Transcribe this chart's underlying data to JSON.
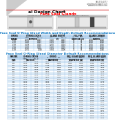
{
  "title": "al Design Chart",
  "subtitle": "Face Seal Glands",
  "subtitle_color": "#FF0000",
  "top_right_text": [
    "888-770-4777",
    "sales@marcorubber.com",
    "www.marcorubber.com"
  ],
  "background_color": "#FFFFFF",
  "table1_title": "Face Seal O-Ring Gland Width and Depth Default Recommendations",
  "table1_title_color": "#0070C0",
  "table2_title": "Face Seal O-Ring Gland Diameter Default Recommendations",
  "table2_title_color": "#0070C0",
  "header_bg_color": "#BDD7EE",
  "row_alt_color": "#DDEBF7",
  "row_normal_color": "#FFFFFF",
  "border_color": "#9DC3E6",
  "table1_rows": [
    [
      "-1XX",
      "0.070",
      "0.003",
      "0.100",
      "0.003",
      "75",
      "85",
      "0.010",
      "0.020"
    ],
    [
      "-2XX",
      "0.103",
      "0.003",
      "0.150",
      "0.003",
      "75",
      "85",
      "0.010",
      "0.020"
    ],
    [
      "-3XX",
      "0.139",
      "0.004",
      "0.200",
      "0.004",
      "75",
      "85",
      "0.015",
      "0.025"
    ],
    [
      "-4XX",
      "0.210",
      "0.005",
      "0.300",
      "0.005",
      "75",
      "85",
      "0.020",
      "0.030"
    ],
    [
      "-5XX",
      "0.275",
      "0.006",
      "0.394",
      "0.006",
      "75",
      "85",
      "0.030",
      "0.040"
    ]
  ],
  "table2_rows": [
    [
      "201",
      "0.070",
      "0.003",
      "0.239",
      "0.379",
      "0.209",
      "0.249",
      "0.359",
      "0.399"
    ],
    [
      "202",
      "0.070",
      "0.003",
      "0.301",
      "0.441",
      "0.271",
      "0.311",
      "0.421",
      "0.461"
    ],
    [
      "203",
      "0.070",
      "0.003",
      "0.364",
      "0.504",
      "0.334",
      "0.374",
      "0.484",
      "0.524"
    ],
    [
      "204",
      "0.070",
      "0.003",
      "0.426",
      "0.566",
      "0.396",
      "0.436",
      "0.546",
      "0.586"
    ],
    [
      "205",
      "0.070",
      "0.003",
      "0.489",
      "0.629",
      "0.459",
      "0.499",
      "0.609",
      "0.649"
    ],
    [
      "206",
      "0.070",
      "0.003",
      "0.551",
      "0.691",
      "0.521",
      "0.561",
      "0.671",
      "0.711"
    ],
    [
      "207",
      "0.070",
      "0.003",
      "0.614",
      "0.754",
      "0.584",
      "0.624",
      "0.734",
      "0.774"
    ],
    [
      "208",
      "0.070",
      "0.003",
      "0.676",
      "0.816",
      "0.646",
      "0.686",
      "0.796",
      "0.836"
    ],
    [
      "209",
      "0.070",
      "0.003",
      "0.739",
      "0.879",
      "0.709",
      "0.749",
      "0.859",
      "0.899"
    ],
    [
      "210",
      "0.070",
      "0.003",
      "0.801",
      "0.941",
      "0.771",
      "0.811",
      "0.921",
      "0.961"
    ],
    [
      "211",
      "0.070",
      "0.003",
      "0.864",
      "1.004",
      "0.834",
      "0.874",
      "0.984",
      "1.024"
    ],
    [
      "212",
      "0.070",
      "0.003",
      "0.926",
      "1.066",
      "0.896",
      "0.936",
      "1.046",
      "1.086"
    ],
    [
      "213",
      "0.103",
      "0.003",
      "0.926",
      "1.132",
      "0.886",
      "0.966",
      "1.092",
      "1.172"
    ],
    [
      "214",
      "0.103",
      "0.003",
      "1.176",
      "1.382",
      "1.136",
      "1.216",
      "1.342",
      "1.422"
    ],
    [
      "215",
      "0.103",
      "0.003",
      "1.301",
      "1.507",
      "1.261",
      "1.341",
      "1.467",
      "1.547"
    ],
    [
      "216",
      "0.103",
      "0.003",
      "1.426",
      "1.632",
      "1.386",
      "1.466",
      "1.592",
      "1.672"
    ],
    [
      "217",
      "0.103",
      "0.003",
      "1.551",
      "1.757",
      "1.511",
      "1.591",
      "1.717",
      "1.797"
    ],
    [
      "218",
      "0.103",
      "0.003",
      "1.676",
      "1.882",
      "1.636",
      "1.716",
      "1.842",
      "1.922"
    ],
    [
      "219",
      "0.103",
      "0.003",
      "1.801",
      "2.007",
      "1.761",
      "1.841",
      "1.967",
      "2.047"
    ],
    [
      "220",
      "0.103",
      "0.003",
      "1.926",
      "2.132",
      "1.886",
      "1.966",
      "2.092",
      "2.172"
    ],
    [
      "221",
      "0.103",
      "0.003",
      "2.051",
      "2.257",
      "2.011",
      "2.091",
      "2.217",
      "2.297"
    ],
    [
      "222",
      "0.103",
      "0.003",
      "2.176",
      "2.382",
      "2.136",
      "2.216",
      "2.342",
      "2.422"
    ],
    [
      "223",
      "0.103",
      "0.003",
      "2.301",
      "2.507",
      "2.261",
      "2.341",
      "2.467",
      "2.547"
    ],
    [
      "224",
      "0.103",
      "0.003",
      "2.426",
      "2.632",
      "2.386",
      "2.466",
      "2.592",
      "2.672"
    ],
    [
      "225",
      "0.103",
      "0.003",
      "2.551",
      "2.757",
      "2.511",
      "2.591",
      "2.717",
      "2.797"
    ],
    [
      "226",
      "0.103",
      "0.003",
      "2.676",
      "2.882",
      "2.636",
      "2.716",
      "2.842",
      "2.922"
    ],
    [
      "227",
      "0.103",
      "0.003",
      "2.801",
      "3.007",
      "2.761",
      "2.841",
      "2.967",
      "3.047"
    ],
    [
      "228",
      "0.103",
      "0.003",
      "2.926",
      "3.132",
      "2.886",
      "2.966",
      "3.092",
      "3.172"
    ],
    [
      "237",
      "0.139",
      "0.004",
      "3.484",
      "3.762",
      "3.424",
      "3.544",
      "3.702",
      "3.822"
    ],
    [
      "238",
      "0.139",
      "0.004",
      "3.734",
      "4.012",
      "3.674",
      "3.794",
      "3.952",
      "4.072"
    ],
    [
      "239",
      "0.139",
      "0.004",
      "3.984",
      "4.262",
      "3.924",
      "4.044",
      "4.202",
      "4.322"
    ]
  ]
}
